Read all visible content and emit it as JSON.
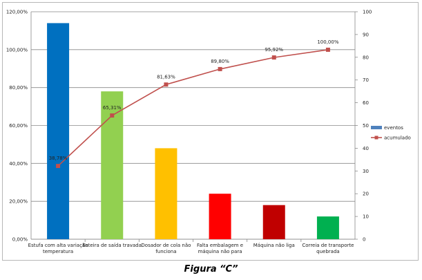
{
  "chart_data": {
    "type": "bar",
    "categories": [
      [
        "Estufa com alta variação",
        "temperatura"
      ],
      [
        "Esteira de saída travada"
      ],
      [
        "Dosador de cola não",
        "funciona"
      ],
      [
        "Falta embalagem e",
        "máquina não para"
      ],
      [
        "Máquina não liga"
      ],
      [
        "Correia de transporte",
        "quebrada"
      ]
    ],
    "series": [
      {
        "name": "eventos",
        "values": [
          114,
          78,
          48,
          24,
          18,
          12
        ],
        "colors": [
          "#0070c0",
          "#92d050",
          "#ffc000",
          "#ff0000",
          "#c00000",
          "#00b050"
        ]
      },
      {
        "name": "acumulado",
        "values": [
          32.2,
          54.4,
          68.0,
          74.8,
          79.9,
          83.3
        ],
        "labels": [
          "38,78%",
          "65,31%",
          "81,63%",
          "89,80%",
          "95,92%",
          "100,00%"
        ],
        "color": "#c0504d"
      }
    ],
    "yleft": {
      "range": [
        0,
        120
      ],
      "ticks": [
        0,
        20,
        40,
        60,
        80,
        100,
        120
      ],
      "tick_labels": [
        "0,00%",
        "20,00%",
        "40,00%",
        "60,00%",
        "80,00%",
        "100,00%",
        "120,00%"
      ]
    },
    "yright": {
      "range": [
        0,
        100
      ],
      "ticks": [
        0,
        10,
        20,
        30,
        40,
        50,
        60,
        70,
        80,
        90,
        100
      ],
      "tick_labels": [
        "0",
        "10",
        "20",
        "30",
        "40",
        "50",
        "60",
        "70",
        "80",
        "90",
        "100"
      ]
    },
    "grid": true,
    "legend_position": "right"
  },
  "caption": "Figura “C”"
}
